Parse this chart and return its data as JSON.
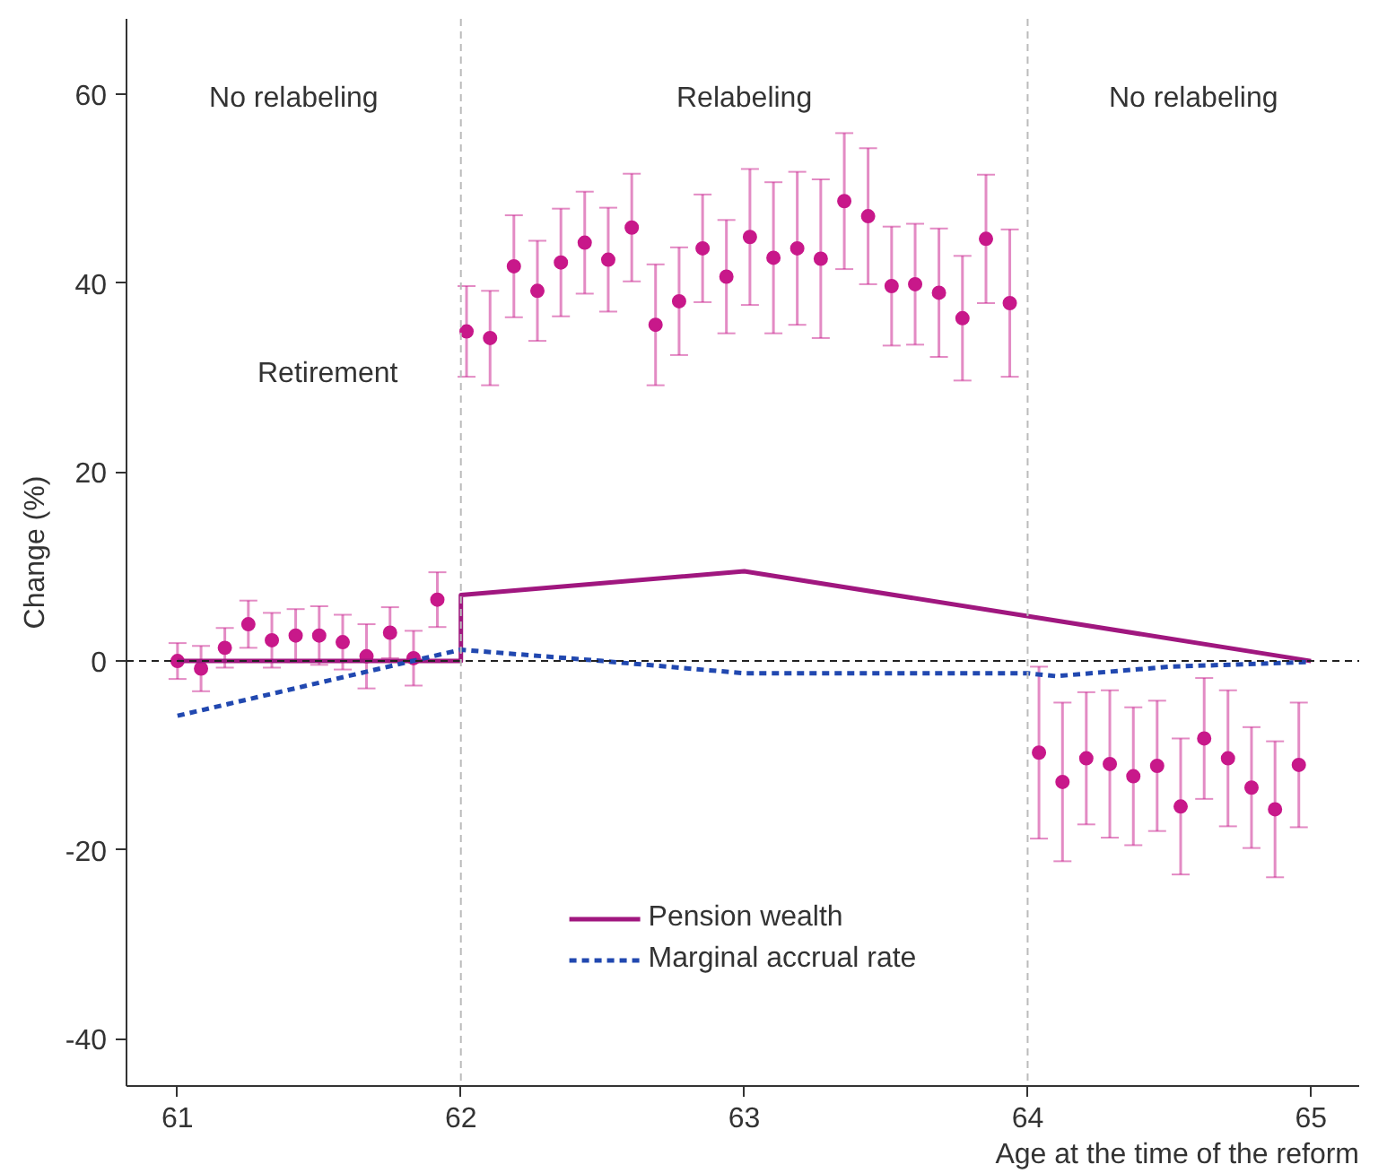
{
  "chart_data": {
    "type": "scatter",
    "ylabel": "Change (%)",
    "xlabel": "Age at the time of the reform",
    "xlim": [
      60.82,
      65.17
    ],
    "ylim": [
      -45,
      68
    ],
    "xticks": [
      61,
      62,
      63,
      64,
      65
    ],
    "yticks": [
      {
        "value": 60,
        "label": "60"
      },
      {
        "value": 40,
        "label": "40"
      },
      {
        "value": 20,
        "label": "20"
      },
      {
        "value": 0,
        "label": "0"
      },
      {
        "value": -20,
        "label": "-20"
      },
      {
        "value": -40,
        "label": "-40"
      }
    ],
    "grid": false,
    "legend": "bottom",
    "series": [
      {
        "marker": "circle",
        "color": "#c8188a",
        "x": [
          61.0,
          61.083,
          61.167,
          61.25,
          61.333,
          61.417,
          61.5,
          61.583,
          61.667,
          61.75,
          61.833,
          61.917,
          62.02,
          62.103,
          62.187,
          62.27,
          62.353,
          62.437,
          62.52,
          62.603,
          62.687,
          62.77,
          62.853,
          62.937,
          63.02,
          63.103,
          63.187,
          63.27,
          63.353,
          63.437,
          63.52,
          63.603,
          63.687,
          63.77,
          63.853,
          63.937,
          64.04,
          64.123,
          64.207,
          64.29,
          64.373,
          64.457,
          64.54,
          64.623,
          64.707,
          64.79,
          64.873,
          64.957
        ],
        "values": [
          0,
          -0.8,
          1.4,
          3.9,
          2.2,
          2.7,
          2.7,
          2.0,
          0.5,
          3.0,
          0.3,
          6.5,
          34.9,
          34.2,
          41.8,
          39.2,
          42.2,
          44.3,
          42.5,
          45.9,
          35.6,
          38.1,
          43.7,
          40.7,
          44.9,
          42.7,
          43.7,
          42.6,
          48.7,
          47.1,
          39.7,
          39.9,
          39.0,
          36.3,
          44.7,
          37.9,
          -9.7,
          -12.8,
          -10.3,
          -10.9,
          -12.2,
          -11.1,
          -15.4,
          -8.2,
          -10.3,
          -13.4,
          -15.7,
          -11.0
        ],
        "errors": [
          1.9,
          2.4,
          2.1,
          2.5,
          2.9,
          2.8,
          3.1,
          2.9,
          3.4,
          2.7,
          2.9,
          2.9,
          4.8,
          5.0,
          5.4,
          5.3,
          5.7,
          5.4,
          5.5,
          5.7,
          6.4,
          5.7,
          5.7,
          6.0,
          7.2,
          8.0,
          8.1,
          8.4,
          7.2,
          7.2,
          6.3,
          6.4,
          6.8,
          6.6,
          6.8,
          7.8,
          9.1,
          8.4,
          7.0,
          7.8,
          7.3,
          6.9,
          7.2,
          6.4,
          7.2,
          6.4,
          7.2,
          6.6
        ]
      },
      {
        "type": "line",
        "name": "Pension wealth",
        "color": "#a0177f",
        "line_style": "solid",
        "marker": "none",
        "x": [
          61,
          62,
          62,
          63,
          65
        ],
        "values": [
          0,
          0,
          7,
          9.5,
          0
        ]
      },
      {
        "type": "line",
        "name": "Marginal accrual rate",
        "color": "#2148b0",
        "line_style": "dashed",
        "marker": "none",
        "x": [
          61.0,
          62,
          62.5,
          63,
          63.5,
          64,
          64.1,
          64.5,
          65
        ],
        "values": [
          -5.8,
          1.2,
          0,
          -1.3,
          -1.3,
          -1.3,
          -1.6,
          -0.6,
          -0.1
        ]
      }
    ],
    "ref_lines": [
      {
        "axis": "y",
        "value": 0,
        "color": "#222222",
        "line_style": "dashed"
      },
      {
        "axis": "x",
        "value": 62,
        "color": "#bbbbbb",
        "line_style": "dashed"
      },
      {
        "axis": "x",
        "value": 64,
        "color": "#bbbbbb",
        "line_style": "dashed"
      }
    ],
    "annotations": [
      "No relabeling",
      "Relabeling",
      "No relabeling",
      "Retirement"
    ]
  }
}
